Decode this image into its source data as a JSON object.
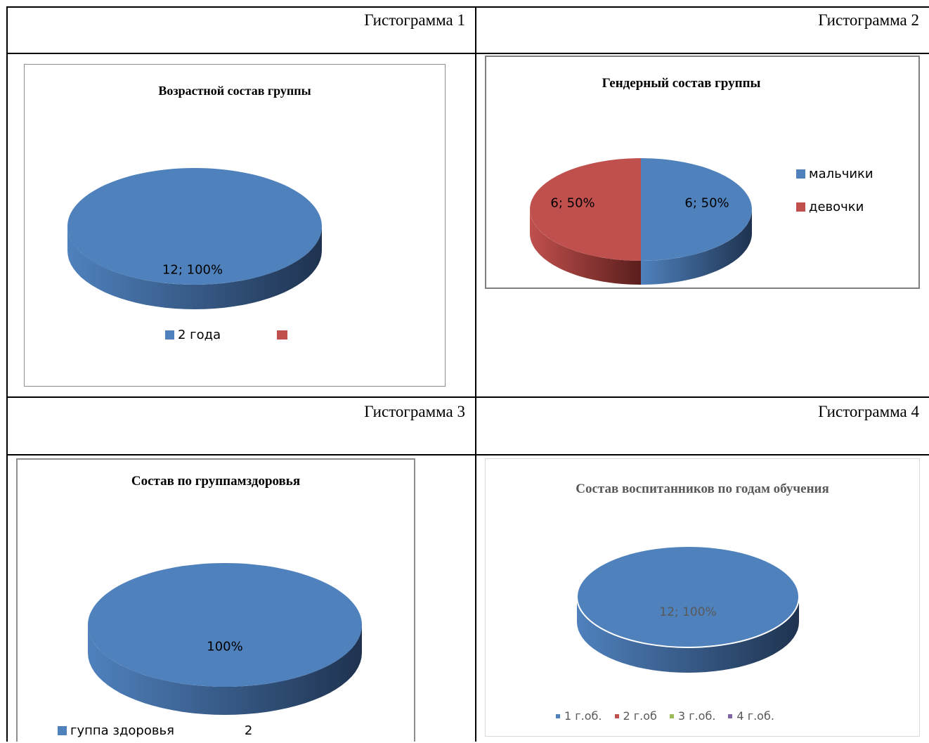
{
  "headers": [
    "Гистограмма 1",
    "Гистограмма 2",
    "Гистограмма 3",
    "Гистограмма 4"
  ],
  "colors": {
    "blue": "#4f81bd",
    "red": "#c0504d",
    "green": "#9bbb59",
    "purple": "#8064a2"
  },
  "chart_data": [
    {
      "type": "pie",
      "title": "Возрастной  состав  группы",
      "categories": [
        "2 года",
        ""
      ],
      "values": [
        12,
        0
      ],
      "data_labels": [
        "12; 100%"
      ],
      "legend": [
        "2 года",
        ""
      ],
      "legend_position": "bottom"
    },
    {
      "type": "pie",
      "title": "Гендерный состав группы",
      "categories": [
        "мальчики",
        "девочки"
      ],
      "values": [
        6,
        6
      ],
      "data_labels": [
        "6; 50%",
        "6; 50%"
      ],
      "legend": [
        "мальчики",
        "девочки"
      ],
      "legend_position": "right"
    },
    {
      "type": "pie",
      "title": "Состав  по группамздоровья",
      "categories": [
        "гуппа здоровья"
      ],
      "values": [
        100
      ],
      "data_labels": [
        "100%"
      ],
      "legend": [
        "гуппа здоровья",
        "2"
      ],
      "legend_position": "bottom"
    },
    {
      "type": "pie",
      "title": "Состав воспитанников по годам обучения",
      "categories": [
        "1 г.об.",
        "2 г.об",
        "3 г.об.",
        "4 г.об."
      ],
      "values": [
        12,
        0,
        0,
        0
      ],
      "data_labels": [
        "12; 100%"
      ],
      "legend": [
        "1 г.об.",
        "2 г.об",
        "3 г.об.",
        "4 г.об."
      ],
      "legend_position": "bottom"
    }
  ]
}
